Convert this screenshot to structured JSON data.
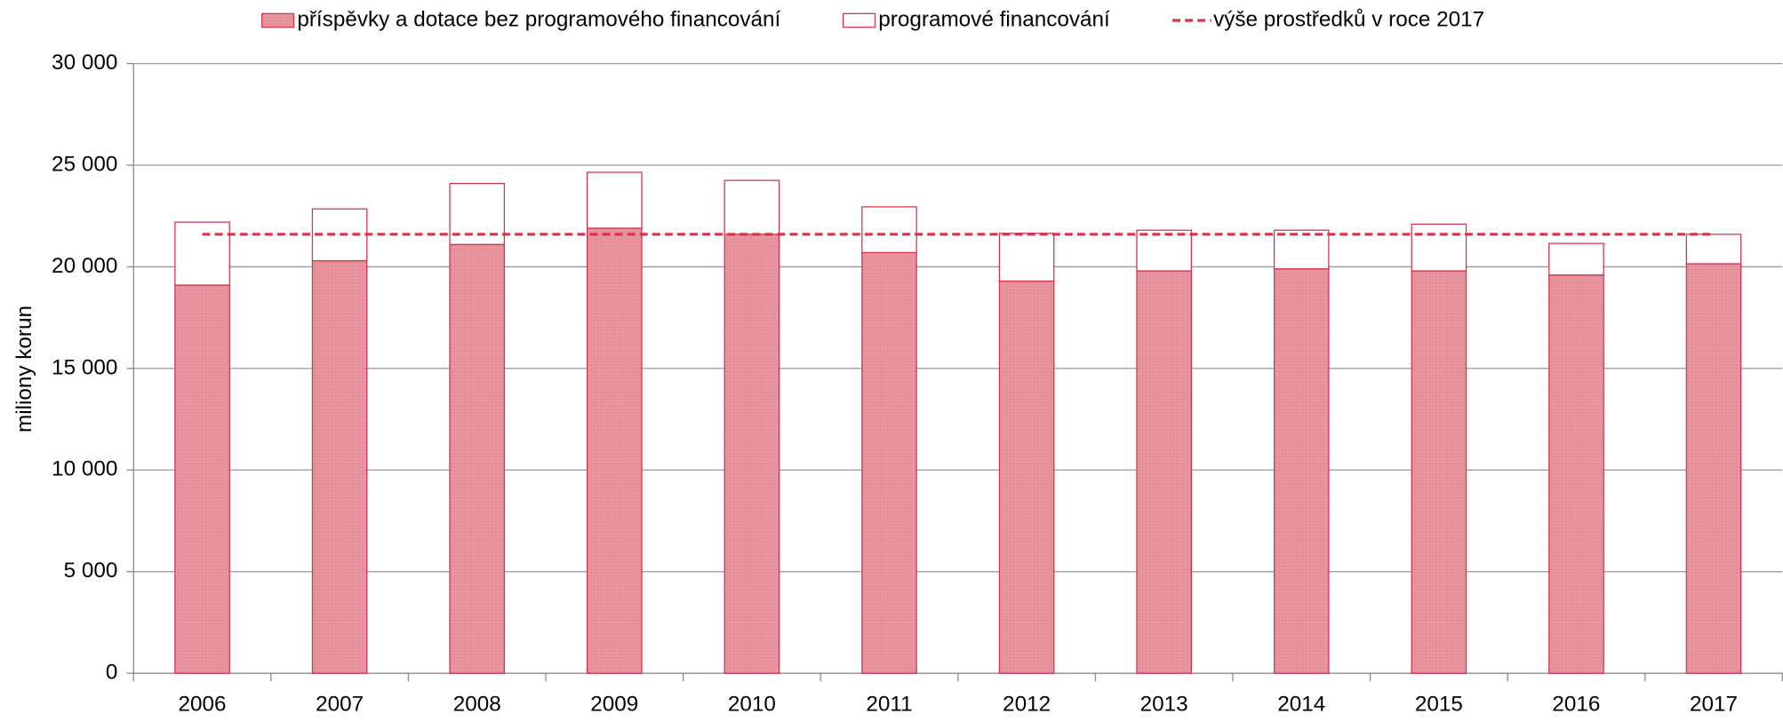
{
  "chart_data": {
    "type": "stacked_bar",
    "y_label": "miliony korun",
    "categories": [
      "2006",
      "2007",
      "2008",
      "2009",
      "2010",
      "2011",
      "2012",
      "2013",
      "2014",
      "2015",
      "2016",
      "2017"
    ],
    "series": [
      {
        "name": "příspěvky a dotace bez programového financování",
        "color": "#e8959f",
        "stroke": "#d6334f",
        "values": [
          19100,
          20300,
          21100,
          21900,
          21600,
          20700,
          19300,
          19800,
          19900,
          19800,
          19600,
          20150
        ]
      },
      {
        "name": "programové financování",
        "color": "#ffffff",
        "stroke": "#d6334f",
        "values": [
          3100,
          2550,
          3000,
          2750,
          2650,
          2250,
          2350,
          2000,
          1900,
          2300,
          1550,
          1450
        ]
      }
    ],
    "reference": {
      "name": "výše prostředků v roce 2017",
      "value": 21600,
      "color": "#d6334f"
    },
    "ylim": [
      0,
      30000
    ],
    "yticks": [
      {
        "value": 0,
        "label": "0"
      },
      {
        "value": 5000,
        "label": "5 000"
      },
      {
        "value": 10000,
        "label": "10 000"
      },
      {
        "value": 15000,
        "label": "15 000"
      },
      {
        "value": 20000,
        "label": "20 000"
      },
      {
        "value": 25000,
        "label": "25 000"
      },
      {
        "value": 30000,
        "label": "30 000"
      }
    ],
    "grid": true,
    "legend": "top"
  }
}
